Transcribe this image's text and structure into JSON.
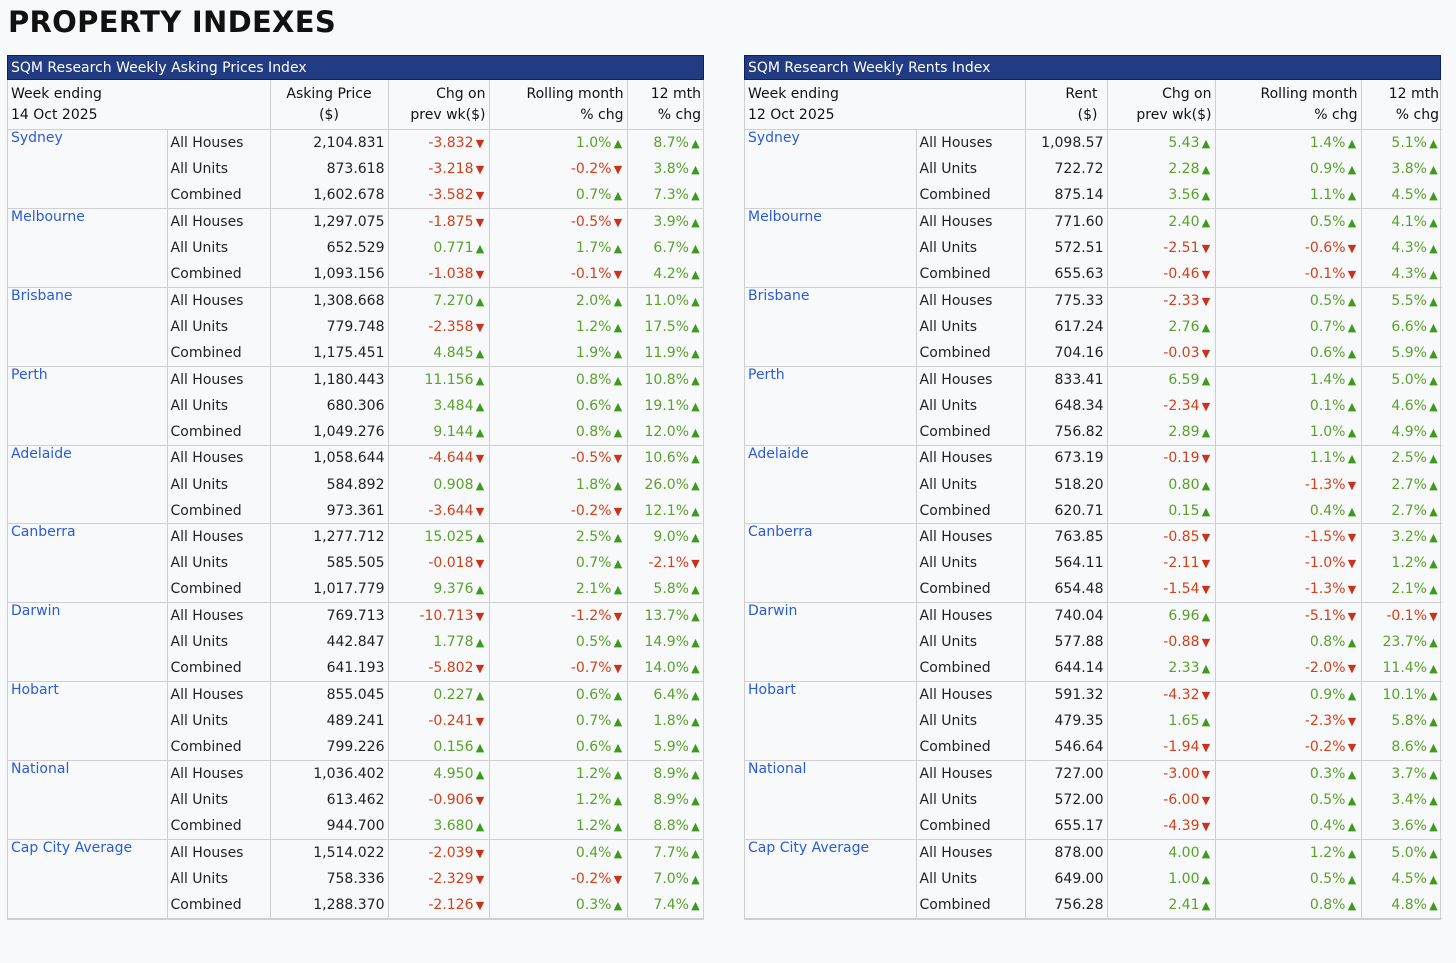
{
  "title": "PROPERTY INDEXES",
  "colors": {
    "banner": "#213c82",
    "city": "#2a5bd7",
    "up": "#5aa12b",
    "down": "#d4401a"
  },
  "prices": {
    "banner": "SQM Research Weekly Asking Prices Index",
    "headers": {
      "week_line1": "Week ending",
      "week_line2": "14 Oct 2025",
      "value_line1": "Asking Price",
      "value_line2": "($)",
      "chg_line1": "Chg on",
      "chg_line2": "prev wk($)",
      "roll_line1": "Rolling month",
      "roll_line2": "% chg",
      "yr_line1": "12 mth",
      "yr_line2": "% chg"
    },
    "groups": [
      {
        "city": "Sydney",
        "rows": [
          [
            "All Houses",
            "2,104.831",
            "-3.832",
            "1.0%",
            "8.7%"
          ],
          [
            "All Units",
            "873.618",
            "-3.218",
            "-0.2%",
            "3.8%"
          ],
          [
            "Combined",
            "1,602.678",
            "-3.582",
            "0.7%",
            "7.3%"
          ]
        ]
      },
      {
        "city": "Melbourne",
        "rows": [
          [
            "All Houses",
            "1,297.075",
            "-1.875",
            "-0.5%",
            "3.9%"
          ],
          [
            "All Units",
            "652.529",
            "0.771",
            "1.7%",
            "6.7%"
          ],
          [
            "Combined",
            "1,093.156",
            "-1.038",
            "-0.1%",
            "4.2%"
          ]
        ]
      },
      {
        "city": "Brisbane",
        "rows": [
          [
            "All Houses",
            "1,308.668",
            "7.270",
            "2.0%",
            "11.0%"
          ],
          [
            "All Units",
            "779.748",
            "-2.358",
            "1.2%",
            "17.5%"
          ],
          [
            "Combined",
            "1,175.451",
            "4.845",
            "1.9%",
            "11.9%"
          ]
        ]
      },
      {
        "city": "Perth",
        "rows": [
          [
            "All Houses",
            "1,180.443",
            "11.156",
            "0.8%",
            "10.8%"
          ],
          [
            "All Units",
            "680.306",
            "3.484",
            "0.6%",
            "19.1%"
          ],
          [
            "Combined",
            "1,049.276",
            "9.144",
            "0.8%",
            "12.0%"
          ]
        ]
      },
      {
        "city": "Adelaide",
        "rows": [
          [
            "All Houses",
            "1,058.644",
            "-4.644",
            "-0.5%",
            "10.6%"
          ],
          [
            "All Units",
            "584.892",
            "0.908",
            "1.8%",
            "26.0%"
          ],
          [
            "Combined",
            "973.361",
            "-3.644",
            "-0.2%",
            "12.1%"
          ]
        ]
      },
      {
        "city": "Canberra",
        "rows": [
          [
            "All Houses",
            "1,277.712",
            "15.025",
            "2.5%",
            "9.0%"
          ],
          [
            "All Units",
            "585.505",
            "-0.018",
            "0.7%",
            "-2.1%"
          ],
          [
            "Combined",
            "1,017.779",
            "9.376",
            "2.1%",
            "5.8%"
          ]
        ]
      },
      {
        "city": "Darwin",
        "rows": [
          [
            "All Houses",
            "769.713",
            "-10.713",
            "-1.2%",
            "13.7%"
          ],
          [
            "All Units",
            "442.847",
            "1.778",
            "0.5%",
            "14.9%"
          ],
          [
            "Combined",
            "641.193",
            "-5.802",
            "-0.7%",
            "14.0%"
          ]
        ]
      },
      {
        "city": "Hobart",
        "rows": [
          [
            "All Houses",
            "855.045",
            "0.227",
            "0.6%",
            "6.4%"
          ],
          [
            "All Units",
            "489.241",
            "-0.241",
            "0.7%",
            "1.8%"
          ],
          [
            "Combined",
            "799.226",
            "0.156",
            "0.6%",
            "5.9%"
          ]
        ]
      },
      {
        "city": "National",
        "rows": [
          [
            "All Houses",
            "1,036.402",
            "4.950",
            "1.2%",
            "8.9%"
          ],
          [
            "All Units",
            "613.462",
            "-0.906",
            "1.2%",
            "8.9%"
          ],
          [
            "Combined",
            "944.700",
            "3.680",
            "1.2%",
            "8.8%"
          ]
        ]
      },
      {
        "city": "Cap City Average",
        "rows": [
          [
            "All Houses",
            "1,514.022",
            "-2.039",
            "0.4%",
            "7.7%"
          ],
          [
            "All Units",
            "758.336",
            "-2.329",
            "-0.2%",
            "7.0%"
          ],
          [
            "Combined",
            "1,288.370",
            "-2.126",
            "0.3%",
            "7.4%"
          ]
        ]
      }
    ]
  },
  "rents": {
    "banner": "SQM Research Weekly Rents Index",
    "headers": {
      "week_line1": "Week ending",
      "week_line2": "12 Oct 2025",
      "value_line1": "Rent",
      "value_line2": "($)",
      "chg_line1": "Chg on",
      "chg_line2": "prev wk($)",
      "roll_line1": "Rolling month",
      "roll_line2": "% chg",
      "yr_line1": "12 mth",
      "yr_line2": "% chg"
    },
    "groups": [
      {
        "city": "Sydney",
        "rows": [
          [
            "All Houses",
            "1,098.57",
            "5.43",
            "1.4%",
            "5.1%"
          ],
          [
            "All Units",
            "722.72",
            "2.28",
            "0.9%",
            "3.8%"
          ],
          [
            "Combined",
            "875.14",
            "3.56",
            "1.1%",
            "4.5%"
          ]
        ]
      },
      {
        "city": "Melbourne",
        "rows": [
          [
            "All Houses",
            "771.60",
            "2.40",
            "0.5%",
            "4.1%"
          ],
          [
            "All Units",
            "572.51",
            "-2.51",
            "-0.6%",
            "4.3%"
          ],
          [
            "Combined",
            "655.63",
            "-0.46",
            "-0.1%",
            "4.3%"
          ]
        ]
      },
      {
        "city": "Brisbane",
        "rows": [
          [
            "All Houses",
            "775.33",
            "-2.33",
            "0.5%",
            "5.5%"
          ],
          [
            "All Units",
            "617.24",
            "2.76",
            "0.7%",
            "6.6%"
          ],
          [
            "Combined",
            "704.16",
            "-0.03",
            "0.6%",
            "5.9%"
          ]
        ]
      },
      {
        "city": "Perth",
        "rows": [
          [
            "All Houses",
            "833.41",
            "6.59",
            "1.4%",
            "5.0%"
          ],
          [
            "All Units",
            "648.34",
            "-2.34",
            "0.1%",
            "4.6%"
          ],
          [
            "Combined",
            "756.82",
            "2.89",
            "1.0%",
            "4.9%"
          ]
        ]
      },
      {
        "city": "Adelaide",
        "rows": [
          [
            "All Houses",
            "673.19",
            "-0.19",
            "1.1%",
            "2.5%"
          ],
          [
            "All Units",
            "518.20",
            "0.80",
            "-1.3%",
            "2.7%"
          ],
          [
            "Combined",
            "620.71",
            "0.15",
            "0.4%",
            "2.7%"
          ]
        ]
      },
      {
        "city": "Canberra",
        "rows": [
          [
            "All Houses",
            "763.85",
            "-0.85",
            "-1.5%",
            "3.2%"
          ],
          [
            "All Units",
            "564.11",
            "-2.11",
            "-1.0%",
            "1.2%"
          ],
          [
            "Combined",
            "654.48",
            "-1.54",
            "-1.3%",
            "2.1%"
          ]
        ]
      },
      {
        "city": "Darwin",
        "rows": [
          [
            "All Houses",
            "740.04",
            "6.96",
            "-5.1%",
            "-0.1%"
          ],
          [
            "All Units",
            "577.88",
            "-0.88",
            "0.8%",
            "23.7%"
          ],
          [
            "Combined",
            "644.14",
            "2.33",
            "-2.0%",
            "11.4%"
          ]
        ]
      },
      {
        "city": "Hobart",
        "rows": [
          [
            "All Houses",
            "591.32",
            "-4.32",
            "0.9%",
            "10.1%"
          ],
          [
            "All Units",
            "479.35",
            "1.65",
            "-2.3%",
            "5.8%"
          ],
          [
            "Combined",
            "546.64",
            "-1.94",
            "-0.2%",
            "8.6%"
          ]
        ]
      },
      {
        "city": "National",
        "rows": [
          [
            "All Houses",
            "727.00",
            "-3.00",
            "0.3%",
            "3.7%"
          ],
          [
            "All Units",
            "572.00",
            "-6.00",
            "0.5%",
            "3.4%"
          ],
          [
            "Combined",
            "655.17",
            "-4.39",
            "0.4%",
            "3.6%"
          ]
        ]
      },
      {
        "city": "Cap City Average",
        "rows": [
          [
            "All Houses",
            "878.00",
            "4.00",
            "1.2%",
            "5.0%"
          ],
          [
            "All Units",
            "649.00",
            "1.00",
            "0.5%",
            "4.5%"
          ],
          [
            "Combined",
            "756.28",
            "2.41",
            "0.8%",
            "4.8%"
          ]
        ]
      }
    ]
  }
}
